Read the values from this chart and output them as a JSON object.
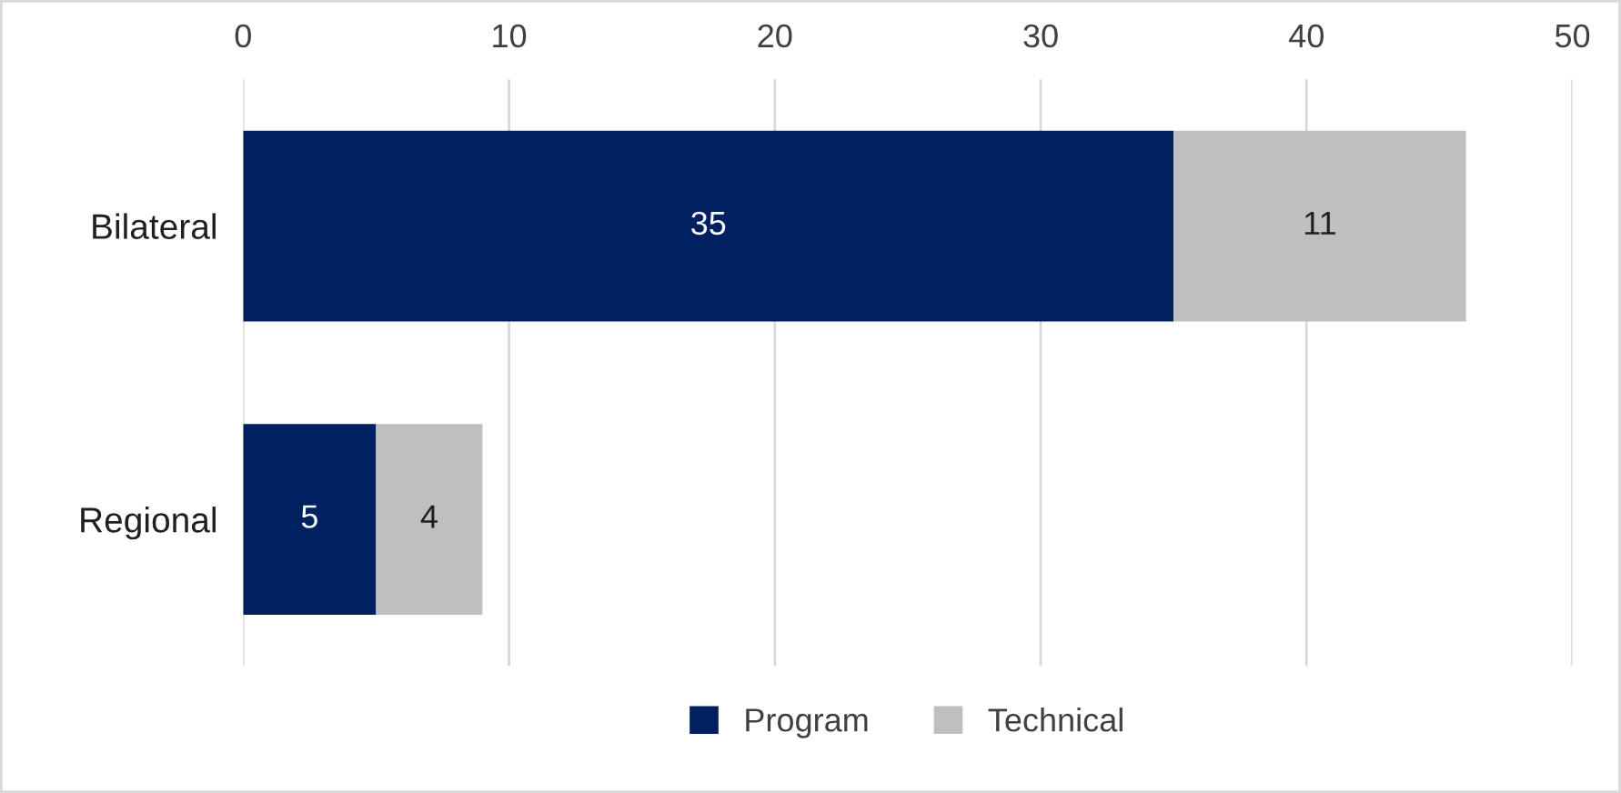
{
  "chart_data": {
    "type": "bar",
    "orientation": "horizontal",
    "stacked": true,
    "categories": [
      "Bilateral",
      "Regional"
    ],
    "series": [
      {
        "name": "Program",
        "color": "#002060",
        "values": [
          35,
          5
        ]
      },
      {
        "name": "Technical",
        "color": "#bfbfbf",
        "values": [
          11,
          4
        ]
      }
    ],
    "xlim": [
      0,
      50
    ],
    "xticks": [
      0,
      10,
      20,
      30,
      40,
      50
    ],
    "grid": "x",
    "legend": "bottom",
    "data_labels": true
  }
}
